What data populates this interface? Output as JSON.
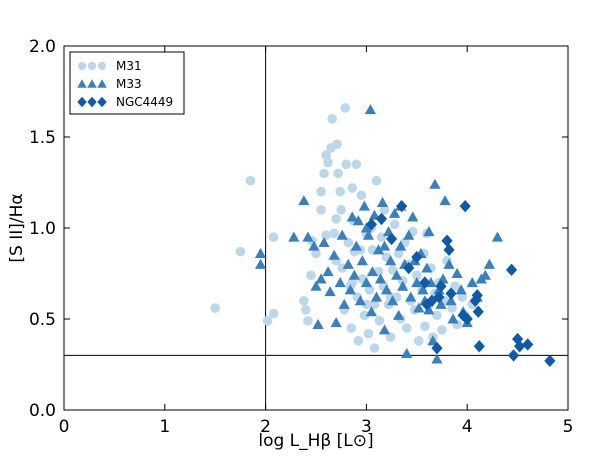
{
  "chart_data": {
    "type": "scatter",
    "xlim": [
      0,
      5
    ],
    "ylim": [
      0,
      2.0
    ],
    "x_ticks": [
      "0",
      "1",
      "2",
      "3",
      "4",
      "5"
    ],
    "y_ticks": [
      "0.0",
      "0.5",
      "1.0",
      "1.5",
      "2.0"
    ],
    "x_tick_values": [
      0,
      1,
      2,
      3,
      4,
      5
    ],
    "y_tick_values": [
      0,
      0.5,
      1.0,
      1.5,
      2.0
    ],
    "xlabel": "log L_Hβ [L⊙]",
    "ylabel": "[S II]/Hα",
    "legend_position": "top-left",
    "reference_lines": {
      "vertical_x": 2.0,
      "horizontal_y": 0.3
    },
    "series": [
      {
        "name": "M31",
        "marker": "circle",
        "color": "#bcd7e8",
        "points": [
          [
            1.5,
            0.56
          ],
          [
            1.75,
            0.87
          ],
          [
            1.85,
            1.26
          ],
          [
            2.02,
            0.49
          ],
          [
            2.08,
            0.53
          ],
          [
            2.08,
            0.95
          ],
          [
            2.38,
            0.6
          ],
          [
            2.4,
            0.55
          ],
          [
            2.42,
            0.49
          ],
          [
            2.45,
            0.74
          ],
          [
            2.46,
            0.93
          ],
          [
            2.5,
            0.86
          ],
          [
            2.55,
            1.1
          ],
          [
            2.55,
            1.2
          ],
          [
            2.58,
            1.3
          ],
          [
            2.6,
            1.4
          ],
          [
            2.62,
            1.36
          ],
          [
            2.65,
            1.44
          ],
          [
            2.66,
            1.6
          ],
          [
            2.68,
            0.97
          ],
          [
            2.7,
            0.82
          ],
          [
            2.71,
            1.46
          ],
          [
            2.72,
            1.3
          ],
          [
            2.74,
            1.2
          ],
          [
            2.75,
            1.1
          ],
          [
            2.76,
            0.78
          ],
          [
            2.78,
            0.55
          ],
          [
            2.79,
            1.66
          ],
          [
            2.8,
            1.35
          ],
          [
            2.82,
            0.92
          ],
          [
            2.84,
            0.68
          ],
          [
            2.85,
            0.45
          ],
          [
            2.86,
            1.22
          ],
          [
            2.87,
            1.04
          ],
          [
            2.88,
            0.87
          ],
          [
            2.9,
            1.35
          ],
          [
            2.91,
            0.62
          ],
          [
            2.92,
            0.38
          ],
          [
            2.94,
            0.88
          ],
          [
            2.95,
            1.18
          ],
          [
            2.96,
            0.72
          ],
          [
            2.98,
            0.52
          ],
          [
            3.0,
            0.97
          ],
          [
            3.02,
            0.42
          ],
          [
            3.03,
            0.66
          ],
          [
            3.05,
            1.0
          ],
          [
            3.06,
            0.88
          ],
          [
            3.08,
            0.58
          ],
          [
            3.1,
            1.26
          ],
          [
            3.12,
            0.76
          ],
          [
            3.13,
            0.49
          ],
          [
            3.15,
            0.95
          ],
          [
            3.17,
            0.68
          ],
          [
            3.18,
            1.1
          ],
          [
            3.2,
            0.84
          ],
          [
            3.22,
            0.58
          ],
          [
            3.24,
            0.4
          ],
          [
            3.26,
            0.77
          ],
          [
            3.28,
            1.02
          ],
          [
            3.3,
            0.62
          ],
          [
            3.32,
            0.86
          ],
          [
            3.34,
            0.5
          ],
          [
            3.36,
            0.71
          ],
          [
            3.38,
            0.92
          ],
          [
            3.4,
            0.45
          ],
          [
            3.42,
            0.8
          ],
          [
            3.44,
            0.6
          ],
          [
            3.46,
            0.98
          ],
          [
            3.48,
            0.55
          ],
          [
            3.5,
            0.74
          ],
          [
            3.52,
            0.38
          ],
          [
            3.55,
            0.66
          ],
          [
            3.57,
            0.86
          ],
          [
            3.58,
            0.46
          ],
          [
            3.6,
            0.97
          ],
          [
            3.62,
            0.58
          ],
          [
            3.64,
            0.78
          ],
          [
            3.66,
            0.4
          ],
          [
            3.68,
            0.64
          ],
          [
            3.7,
            0.52
          ],
          [
            3.72,
            0.7
          ],
          [
            3.75,
            0.44
          ],
          [
            3.78,
            0.6
          ],
          [
            3.8,
            0.82
          ],
          [
            3.85,
            0.56
          ],
          [
            3.88,
            0.68
          ],
          [
            3.9,
            0.47
          ],
          [
            3.95,
            0.62
          ],
          [
            3.98,
            0.52
          ],
          [
            4.05,
            0.58
          ],
          [
            2.6,
            0.96
          ],
          [
            2.7,
            1.05
          ],
          [
            2.86,
            0.7
          ],
          [
            3.0,
            0.58
          ],
          [
            3.08,
            0.34
          ],
          [
            3.24,
            0.62
          ]
        ]
      },
      {
        "name": "M33",
        "marker": "triangle",
        "color": "#3a80bd",
        "points": [
          [
            1.95,
            0.86
          ],
          [
            1.95,
            0.8
          ],
          [
            2.28,
            0.95
          ],
          [
            2.38,
            1.15
          ],
          [
            2.42,
            0.95
          ],
          [
            2.48,
            0.9
          ],
          [
            2.5,
            0.68
          ],
          [
            2.52,
            0.47
          ],
          [
            2.55,
            0.72
          ],
          [
            2.58,
            0.92
          ],
          [
            2.62,
            0.76
          ],
          [
            2.64,
            0.65
          ],
          [
            2.68,
            0.85
          ],
          [
            2.7,
            0.48
          ],
          [
            2.74,
            0.7
          ],
          [
            2.76,
            0.96
          ],
          [
            2.78,
            0.58
          ],
          [
            2.82,
            0.8
          ],
          [
            2.84,
            0.66
          ],
          [
            2.86,
            1.06
          ],
          [
            2.88,
            0.74
          ],
          [
            2.9,
            0.9
          ],
          [
            2.92,
            1.04
          ],
          [
            2.94,
            0.6
          ],
          [
            2.96,
            0.82
          ],
          [
            2.98,
            1.12
          ],
          [
            3.0,
            0.7
          ],
          [
            3.02,
            0.96
          ],
          [
            3.04,
            1.65
          ],
          [
            3.05,
            0.54
          ],
          [
            3.06,
            0.76
          ],
          [
            3.08,
            1.07
          ],
          [
            3.1,
            0.62
          ],
          [
            3.12,
            0.88
          ],
          [
            3.14,
            0.72
          ],
          [
            3.16,
            1.14
          ],
          [
            3.18,
            0.44
          ],
          [
            3.2,
            0.66
          ],
          [
            3.22,
            0.98
          ],
          [
            3.24,
            0.82
          ],
          [
            3.26,
            0.6
          ],
          [
            3.28,
            1.08
          ],
          [
            3.3,
            0.74
          ],
          [
            3.32,
            0.52
          ],
          [
            3.34,
            0.9
          ],
          [
            3.36,
            0.68
          ],
          [
            3.38,
            0.8
          ],
          [
            3.4,
            0.31
          ],
          [
            3.42,
            0.96
          ],
          [
            3.44,
            0.62
          ],
          [
            3.46,
            1.06
          ],
          [
            3.48,
            0.82
          ],
          [
            3.5,
            0.7
          ],
          [
            3.52,
            0.56
          ],
          [
            3.54,
            0.86
          ],
          [
            3.56,
            0.66
          ],
          [
            3.58,
            0.6
          ],
          [
            3.6,
            0.78
          ],
          [
            3.62,
            0.55
          ],
          [
            3.64,
            0.7
          ],
          [
            3.66,
            0.38
          ],
          [
            3.68,
            1.24
          ],
          [
            3.7,
            0.28
          ],
          [
            3.72,
            0.66
          ],
          [
            3.74,
            0.58
          ],
          [
            3.76,
            0.72
          ],
          [
            3.78,
            1.15
          ],
          [
            3.82,
            0.8
          ],
          [
            3.84,
            0.6
          ],
          [
            3.86,
            0.5
          ],
          [
            3.9,
            0.75
          ],
          [
            3.94,
            0.66
          ],
          [
            4.0,
            0.48
          ],
          [
            4.05,
            0.7
          ],
          [
            4.1,
            0.62
          ],
          [
            4.14,
            0.72
          ],
          [
            4.18,
            0.74
          ],
          [
            4.22,
            0.8
          ],
          [
            4.3,
            0.95
          ],
          [
            3.96,
            0.54
          ],
          [
            3.62,
            0.98
          ],
          [
            3.34,
            1.12
          ],
          [
            3.18,
            0.9
          ],
          [
            3.0,
            1.0
          ]
        ]
      },
      {
        "name": "NGC4449",
        "marker": "diamond",
        "color": "#0f5aa6",
        "points": [
          [
            3.05,
            1.02
          ],
          [
            3.15,
            1.05
          ],
          [
            3.25,
            0.94
          ],
          [
            3.35,
            1.12
          ],
          [
            3.42,
            0.78
          ],
          [
            3.5,
            0.84
          ],
          [
            3.58,
            0.7
          ],
          [
            3.6,
            0.58
          ],
          [
            3.65,
            0.6
          ],
          [
            3.7,
            0.34
          ],
          [
            3.72,
            0.62
          ],
          [
            3.74,
            0.68
          ],
          [
            3.8,
            0.93
          ],
          [
            3.82,
            0.88
          ],
          [
            3.84,
            0.64
          ],
          [
            3.96,
            0.52
          ],
          [
            3.98,
            1.12
          ],
          [
            4.0,
            0.5
          ],
          [
            4.08,
            0.6
          ],
          [
            4.1,
            0.63
          ],
          [
            4.11,
            0.54
          ],
          [
            4.12,
            0.35
          ],
          [
            4.44,
            0.77
          ],
          [
            4.46,
            0.3
          ],
          [
            4.5,
            0.39
          ],
          [
            4.52,
            0.35
          ],
          [
            4.6,
            0.36
          ],
          [
            4.82,
            0.27
          ]
        ]
      }
    ]
  }
}
